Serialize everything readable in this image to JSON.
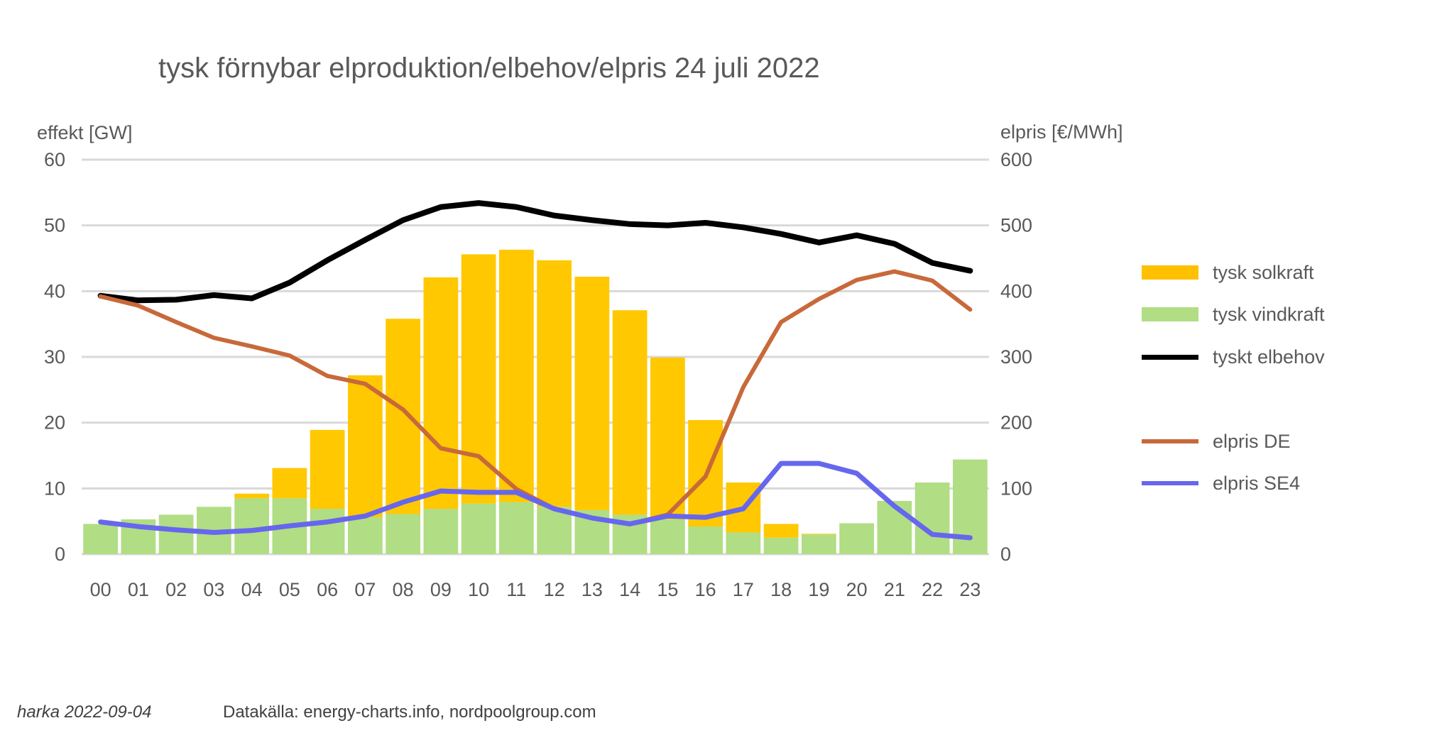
{
  "chart_data": {
    "type": "bar",
    "title": "tysk förnybar elproduktion/elbehov/elpris 24 juli 2022",
    "ylabel": "effekt [GW]",
    "ylabel_right": "elpris [€/MWh]",
    "xlabel": "",
    "ylim": [
      0,
      60
    ],
    "ylim_right": [
      0,
      600
    ],
    "yticks": [
      "0",
      "10",
      "20",
      "30",
      "40",
      "50",
      "60"
    ],
    "yticks_right": [
      "0",
      "100",
      "200",
      "300",
      "400",
      "500",
      "600"
    ],
    "grid": true,
    "legend_position": "right",
    "categories": [
      "00",
      "01",
      "02",
      "03",
      "04",
      "05",
      "06",
      "07",
      "08",
      "09",
      "10",
      "11",
      "12",
      "13",
      "14",
      "15",
      "16",
      "17",
      "18",
      "19",
      "20",
      "21",
      "22",
      "23"
    ],
    "series": [
      {
        "name": "tysk solkraft",
        "type": "stacked-bar",
        "axis": "left",
        "color": "#FFC800",
        "values": [
          0,
          0,
          0,
          0,
          0.7,
          4.6,
          12.0,
          21.6,
          29.7,
          35.2,
          37.9,
          38.4,
          37.5,
          35.5,
          31.1,
          24.6,
          16.2,
          7.6,
          2.1,
          0.1,
          0,
          0,
          0,
          0
        ]
      },
      {
        "name": "tysk vindkraft",
        "type": "stacked-bar",
        "axis": "left",
        "color": "#B1DD84",
        "values": [
          4.6,
          5.3,
          6.0,
          7.2,
          8.5,
          8.5,
          6.9,
          5.6,
          6.1,
          6.9,
          7.7,
          7.9,
          7.2,
          6.7,
          6.0,
          5.3,
          4.2,
          3.3,
          2.5,
          3.0,
          4.7,
          8.1,
          10.9,
          14.4
        ]
      },
      {
        "name": "tyskt elbehov",
        "type": "line",
        "axis": "left",
        "color": "#000000",
        "values": [
          39.3,
          38.6,
          38.7,
          39.4,
          38.9,
          41.3,
          44.7,
          47.8,
          50.8,
          52.8,
          53.4,
          52.8,
          51.5,
          50.8,
          50.2,
          50.0,
          50.4,
          49.7,
          48.7,
          47.4,
          48.5,
          47.2,
          44.3,
          43.1
        ]
      },
      {
        "name": "elpris DE",
        "type": "line",
        "axis": "right",
        "color": "#C8693A",
        "values": [
          392,
          378,
          353,
          329,
          316,
          302,
          271,
          259,
          220,
          161,
          149,
          99,
          69,
          55,
          46,
          60,
          118,
          254,
          353,
          388,
          417,
          430,
          416,
          372
        ]
      },
      {
        "name": "elpris SE4",
        "type": "line",
        "axis": "right",
        "color": "#6666EE",
        "values": [
          49,
          42,
          37,
          33,
          36,
          43,
          49,
          58,
          79,
          96,
          94,
          94,
          69,
          55,
          46,
          58,
          56,
          69,
          138,
          138,
          123,
          73,
          30,
          25
        ]
      }
    ]
  },
  "footer": {
    "author": "harka 2022-09-04",
    "source": "Datakälla: energy-charts.info, nordpoolgroup.com"
  }
}
